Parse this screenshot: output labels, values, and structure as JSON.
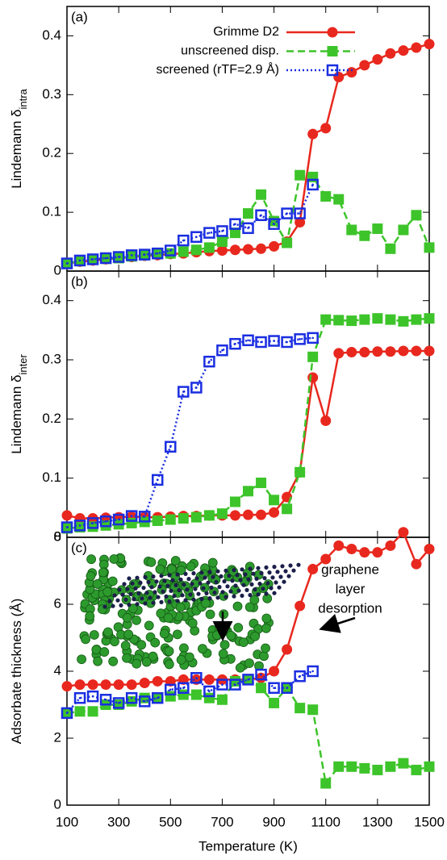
{
  "chart_data": [
    {
      "type": "line",
      "panel_label": "(a)",
      "ylabel": {
        "text": "Lindemann δ",
        "sub": "intra"
      },
      "x": [
        100,
        150,
        200,
        250,
        300,
        350,
        400,
        450,
        500,
        550,
        600,
        650,
        700,
        750,
        800,
        850,
        900,
        950,
        1000,
        1050,
        1100,
        1150,
        1200,
        1250,
        1300,
        1350,
        1400,
        1450,
        1500
      ],
      "xlim": [
        100,
        1500
      ],
      "xticks": [
        100,
        300,
        500,
        700,
        900,
        1100,
        1300,
        1500
      ],
      "ylim": [
        0,
        0.45
      ],
      "yticks": [
        0,
        0.1,
        0.2,
        0.3,
        0.4
      ],
      "series": [
        {
          "name": "Grimme D2",
          "color": "#e8281e",
          "marker": "circle",
          "line_style": "solid",
          "values": [
            0.013,
            0.016,
            0.018,
            0.02,
            0.022,
            0.024,
            0.026,
            0.027,
            0.029,
            0.03,
            0.032,
            0.034,
            0.035,
            0.036,
            0.037,
            0.038,
            0.042,
            0.05,
            0.083,
            0.233,
            0.243,
            0.33,
            0.338,
            0.35,
            0.36,
            0.37,
            0.375,
            0.38,
            0.386
          ]
        },
        {
          "name": "unscreened disp.",
          "color": "#3dc42a",
          "marker": "square",
          "line_style": "dashed",
          "values": [
            0.013,
            0.017,
            0.02,
            0.021,
            0.022,
            0.025,
            0.027,
            0.029,
            0.03,
            0.033,
            0.036,
            0.04,
            0.05,
            0.065,
            0.098,
            0.13,
            0.085,
            0.048,
            0.163,
            0.16,
            0.127,
            0.122,
            0.07,
            0.06,
            0.072,
            0.038,
            0.07,
            0.095,
            0.04
          ]
        },
        {
          "name": "screened (rTF=2.9 Å)",
          "color": "#1a2ee0",
          "marker": "open-square",
          "line_style": "dotted",
          "values": [
            0.013,
            0.018,
            0.02,
            0.022,
            0.024,
            0.027,
            0.028,
            0.03,
            0.035,
            0.052,
            0.058,
            0.065,
            0.068,
            0.08,
            0.073,
            0.095,
            0.08,
            0.098,
            0.098,
            0.147,
            null,
            null,
            null,
            null,
            null,
            null,
            null,
            null,
            null
          ]
        }
      ]
    },
    {
      "type": "line",
      "panel_label": "(b)",
      "ylabel": {
        "text": "Lindemann δ",
        "sub": "inter"
      },
      "x": [
        100,
        150,
        200,
        250,
        300,
        350,
        400,
        450,
        500,
        550,
        600,
        650,
        700,
        750,
        800,
        850,
        900,
        950,
        1000,
        1050,
        1100,
        1150,
        1200,
        1250,
        1300,
        1350,
        1400,
        1450,
        1500
      ],
      "xlim": [
        100,
        1500
      ],
      "xticks": [
        100,
        300,
        500,
        700,
        900,
        1100,
        1300,
        1500
      ],
      "ylim": [
        0,
        0.45
      ],
      "yticks": [
        0,
        0.1,
        0.2,
        0.3,
        0.4
      ],
      "series": [
        {
          "color": "#e8281e",
          "marker": "circle",
          "line_style": "solid",
          "values": [
            0.037,
            0.032,
            0.032,
            0.033,
            0.034,
            0.035,
            0.034,
            0.034,
            0.035,
            0.036,
            0.036,
            0.037,
            0.037,
            0.037,
            0.038,
            0.038,
            0.042,
            0.068,
            0.11,
            0.27,
            0.197,
            0.311,
            0.313,
            0.313,
            0.314,
            0.314,
            0.315,
            0.315,
            0.315
          ]
        },
        {
          "color": "#3dc42a",
          "marker": "square",
          "line_style": "dashed",
          "values": [
            0.015,
            0.017,
            0.018,
            0.02,
            0.022,
            0.024,
            0.026,
            0.028,
            0.03,
            0.032,
            0.034,
            0.037,
            0.04,
            0.06,
            0.078,
            0.092,
            0.063,
            0.048,
            0.11,
            0.305,
            0.368,
            0.367,
            0.366,
            0.368,
            0.37,
            0.368,
            0.365,
            0.368,
            0.37
          ]
        },
        {
          "color": "#1a2ee0",
          "marker": "open-square",
          "line_style": "dotted",
          "values": [
            0.017,
            0.02,
            0.024,
            0.027,
            0.03,
            0.036,
            0.035,
            0.097,
            0.153,
            0.246,
            0.253,
            0.297,
            0.316,
            0.327,
            0.333,
            0.33,
            0.332,
            0.33,
            0.335,
            0.337,
            null,
            null,
            null,
            null,
            null,
            null,
            null,
            null,
            null
          ]
        }
      ]
    },
    {
      "type": "line",
      "panel_label": "(c)",
      "ylabel": {
        "text": "Adsorbate thickness (Å)"
      },
      "xlabel": "Temperature (K)",
      "x": [
        100,
        150,
        200,
        250,
        300,
        350,
        400,
        450,
        500,
        550,
        600,
        650,
        700,
        750,
        800,
        850,
        900,
        950,
        1000,
        1050,
        1100,
        1150,
        1200,
        1250,
        1300,
        1350,
        1400,
        1450,
        1500
      ],
      "xlim": [
        100,
        1500
      ],
      "xticks": [
        100,
        300,
        500,
        700,
        900,
        1100,
        1300,
        1500
      ],
      "ylim": [
        0,
        8
      ],
      "yticks": [
        0,
        2,
        4,
        6,
        8
      ],
      "annotation": [
        "graphene",
        "layer",
        "desorption"
      ],
      "series": [
        {
          "color": "#e8281e",
          "marker": "circle",
          "line_style": "solid",
          "values": [
            3.55,
            3.6,
            3.6,
            3.6,
            3.6,
            3.6,
            3.65,
            3.7,
            3.7,
            3.75,
            3.75,
            3.75,
            3.75,
            3.75,
            3.75,
            3.8,
            4.0,
            4.65,
            5.95,
            7.05,
            7.35,
            7.75,
            7.65,
            7.55,
            7.55,
            7.75,
            8.15,
            7.2,
            7.65
          ]
        },
        {
          "color": "#3dc42a",
          "marker": "square",
          "line_style": "dashed",
          "values": [
            2.75,
            2.8,
            2.8,
            3.0,
            3.0,
            3.1,
            3.2,
            3.2,
            3.25,
            3.3,
            3.3,
            3.2,
            3.15,
            3.7,
            3.75,
            3.5,
            3.05,
            3.5,
            2.9,
            2.85,
            0.65,
            1.15,
            1.15,
            1.1,
            1.05,
            1.15,
            1.25,
            1.05,
            1.15
          ]
        },
        {
          "color": "#1a2ee0",
          "marker": "open-square",
          "line_style": "dotted",
          "values": [
            2.75,
            3.2,
            3.25,
            3.15,
            3.05,
            3.2,
            3.1,
            3.2,
            3.45,
            3.5,
            3.8,
            3.4,
            3.6,
            3.6,
            3.75,
            3.9,
            3.5,
            3.5,
            3.85,
            4.0,
            null,
            null,
            null,
            null,
            null,
            null,
            null,
            null,
            null
          ]
        }
      ]
    }
  ]
}
